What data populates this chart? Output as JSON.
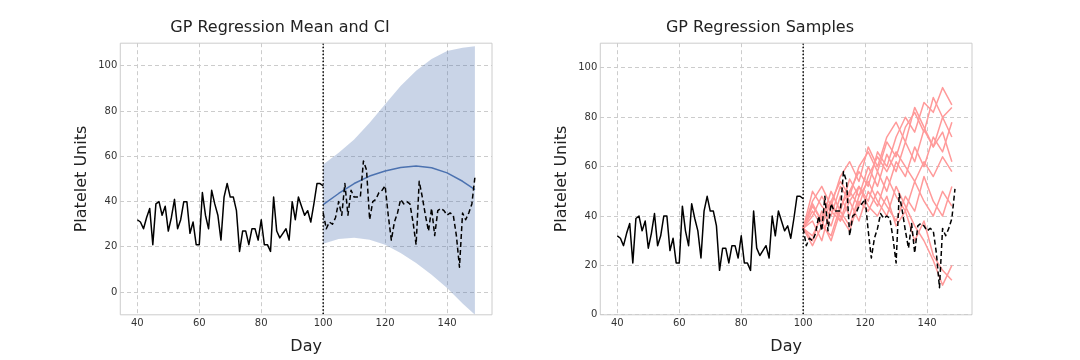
{
  "chart_data": [
    {
      "type": "line",
      "title": "GP Regression Mean and CI",
      "xlabel": "Day",
      "ylabel": "Platelet Units",
      "xlim": [
        34.5,
        154.5
      ],
      "xticks": [
        40,
        60,
        80,
        100,
        120,
        140
      ],
      "ylim": [
        -10,
        110
      ],
      "yticks": [
        0,
        20,
        40,
        60,
        80,
        100
      ],
      "grid": true,
      "legend": false,
      "marker": "none",
      "series": [
        {
          "color": "#000000",
          "line_style": "solid",
          "x": [
            40,
            41,
            42,
            43,
            44,
            45,
            46,
            47,
            48,
            49,
            50,
            51,
            52,
            53,
            54,
            55,
            56,
            57,
            58,
            59,
            60,
            61,
            62,
            63,
            64,
            65,
            66,
            67,
            68,
            69,
            70,
            71,
            72,
            73,
            74,
            75,
            76,
            77,
            78,
            79,
            80,
            81,
            82,
            83,
            84,
            85,
            86,
            87,
            88,
            89,
            90,
            91,
            92,
            93,
            94,
            95,
            96,
            97,
            98,
            99,
            100
          ],
          "values": [
            32,
            31,
            28,
            33,
            37,
            21,
            39,
            40,
            34,
            38,
            27,
            33,
            41,
            28,
            32,
            40,
            40,
            26,
            31,
            21,
            21,
            44,
            34,
            28,
            45,
            39,
            34,
            23,
            42,
            48,
            42,
            42,
            36,
            18,
            27,
            27,
            21,
            28,
            28,
            23,
            32,
            21,
            21,
            18,
            42,
            27,
            24,
            26,
            28,
            23,
            40,
            32,
            42,
            38,
            34,
            36,
            31,
            39,
            48,
            48,
            47
          ]
        },
        {
          "color": "#4c72b0",
          "line_style": "solid",
          "x": [
            100,
            105,
            110,
            115,
            120,
            125,
            130,
            135,
            140,
            145,
            149
          ],
          "values": [
            38.7,
            43.6,
            48,
            51.3,
            53.5,
            55.1,
            55.7,
            55,
            52.7,
            49,
            45.3
          ],
          "lower": [
            21.4,
            23.5,
            24,
            23.2,
            21,
            17.3,
            12.9,
            7.7,
            1.8,
            -5,
            -10
          ],
          "upper": [
            56.4,
            61.6,
            67.5,
            74.9,
            83,
            91.1,
            97.8,
            103,
            106.6,
            108,
            108.6
          ]
        },
        {
          "color": "#000000",
          "line_style": "dashed",
          "x": [
            100,
            101,
            102,
            103,
            104,
            105,
            106,
            107,
            108,
            109,
            110,
            111,
            112,
            113,
            114,
            115,
            116,
            117,
            118,
            119,
            120,
            121,
            122,
            123,
            124,
            125,
            126,
            127,
            128,
            129,
            130,
            131,
            132,
            133,
            134,
            135,
            136,
            137,
            138,
            139,
            140,
            141,
            142,
            143,
            144,
            145,
            146,
            147,
            148,
            149
          ],
          "values": [
            35,
            28,
            31,
            30,
            33,
            40,
            34,
            48,
            34,
            45,
            42,
            42,
            42,
            58,
            54,
            32,
            40,
            41,
            44,
            45,
            47,
            34,
            23,
            31,
            35,
            41,
            39,
            40,
            39,
            31,
            21,
            49,
            42,
            34,
            27,
            37,
            25,
            36,
            37,
            36,
            34,
            35,
            34,
            25,
            11,
            35,
            32,
            35,
            39,
            51
          ]
        }
      ],
      "ref_lines": [
        {
          "axis": "x",
          "value": 100,
          "color": "#000000",
          "line_style": "dotted"
        }
      ]
    },
    {
      "type": "line",
      "title": "GP Regression Samples",
      "xlabel": "Day",
      "ylabel": "Platelet Units",
      "xlim": [
        34.5,
        154.5
      ],
      "xticks": [
        40,
        60,
        80,
        100,
        120,
        140
      ],
      "ylim": [
        0,
        110
      ],
      "yticks": [
        0,
        20,
        40,
        60,
        80,
        100
      ],
      "grid": true,
      "legend": false,
      "marker": "none",
      "series": [
        {
          "color": "#ff9a9a",
          "line_style": "solid",
          "x": [
            100,
            103,
            106,
            109,
            112,
            115,
            118,
            121,
            124,
            127,
            130,
            133,
            136,
            139,
            142,
            145,
            148
          ],
          "values": [
            35,
            45,
            38,
            50,
            42,
            55,
            48,
            60,
            52,
            65,
            58,
            70,
            62,
            75,
            68,
            80,
            72
          ]
        },
        {
          "color": "#ff9a9a",
          "line_style": "solid",
          "x": [
            100,
            103,
            106,
            109,
            112,
            115,
            118,
            121,
            124,
            127,
            130,
            133,
            136,
            139,
            142,
            145,
            148
          ],
          "values": [
            35,
            30,
            42,
            36,
            48,
            40,
            52,
            46,
            58,
            50,
            62,
            56,
            68,
            60,
            72,
            66,
            78
          ]
        },
        {
          "color": "#ff9a9a",
          "line_style": "solid",
          "x": [
            100,
            103,
            106,
            109,
            112,
            115,
            118,
            121,
            124,
            127,
            130,
            133,
            136,
            139,
            142,
            145,
            148
          ],
          "values": [
            35,
            50,
            44,
            40,
            52,
            46,
            38,
            50,
            44,
            56,
            48,
            42,
            54,
            46,
            40,
            50,
            44
          ]
        },
        {
          "color": "#ff9a9a",
          "line_style": "solid",
          "x": [
            100,
            103,
            106,
            109,
            112,
            115,
            118,
            121,
            124,
            127,
            130,
            133,
            136,
            139,
            142,
            145,
            148
          ],
          "values": [
            35,
            28,
            36,
            32,
            44,
            50,
            58,
            52,
            66,
            60,
            72,
            80,
            74,
            86,
            82,
            92,
            85
          ]
        },
        {
          "color": "#ff9a9a",
          "line_style": "solid",
          "x": [
            100,
            103,
            106,
            109,
            112,
            115,
            118,
            121,
            124,
            127,
            130,
            133,
            136,
            139,
            142,
            145,
            148
          ],
          "values": [
            35,
            40,
            48,
            42,
            38,
            46,
            52,
            44,
            40,
            48,
            36,
            42,
            30,
            38,
            24,
            18,
            14
          ]
        },
        {
          "color": "#ff9a9a",
          "line_style": "solid",
          "x": [
            100,
            103,
            106,
            109,
            112,
            115,
            118,
            121,
            124,
            127,
            130,
            133,
            136,
            139,
            142,
            145,
            148
          ],
          "values": [
            35,
            42,
            36,
            46,
            54,
            48,
            60,
            66,
            58,
            70,
            64,
            76,
            82,
            74,
            88,
            80,
            84
          ]
        },
        {
          "color": "#ff9a9a",
          "line_style": "solid",
          "x": [
            100,
            103,
            106,
            109,
            112,
            115,
            118,
            121,
            124,
            127,
            130,
            133,
            136,
            139,
            142,
            145,
            148
          ],
          "values": [
            35,
            38,
            30,
            44,
            40,
            34,
            46,
            42,
            50,
            44,
            38,
            48,
            42,
            56,
            46,
            40,
            52
          ]
        },
        {
          "color": "#ff9a9a",
          "line_style": "solid",
          "x": [
            100,
            103,
            106,
            109,
            112,
            115,
            118,
            121,
            124,
            127,
            130,
            133,
            136,
            139,
            142,
            145,
            148
          ],
          "values": [
            35,
            46,
            52,
            44,
            56,
            62,
            54,
            68,
            60,
            72,
            78,
            70,
            84,
            76,
            68,
            74,
            62
          ]
        },
        {
          "color": "#ff9a9a",
          "line_style": "solid",
          "x": [
            100,
            103,
            106,
            109,
            112,
            115,
            118,
            121,
            124,
            127,
            130,
            133,
            136,
            139,
            142,
            145,
            148
          ],
          "values": [
            35,
            32,
            40,
            46,
            38,
            50,
            44,
            56,
            64,
            58,
            66,
            60,
            54,
            62,
            56,
            64,
            58
          ]
        },
        {
          "color": "#ff9a9a",
          "line_style": "solid",
          "x": [
            100,
            103,
            106,
            109,
            112,
            115,
            118,
            121,
            124,
            127,
            130,
            133,
            136,
            139,
            142,
            145,
            148
          ],
          "values": [
            35,
            44,
            38,
            30,
            42,
            36,
            48,
            54,
            46,
            40,
            52,
            44,
            36,
            30,
            22,
            12,
            20
          ]
        },
        {
          "color": "#000000",
          "line_style": "solid",
          "x": [
            40,
            41,
            42,
            43,
            44,
            45,
            46,
            47,
            48,
            49,
            50,
            51,
            52,
            53,
            54,
            55,
            56,
            57,
            58,
            59,
            60,
            61,
            62,
            63,
            64,
            65,
            66,
            67,
            68,
            69,
            70,
            71,
            72,
            73,
            74,
            75,
            76,
            77,
            78,
            79,
            80,
            81,
            82,
            83,
            84,
            85,
            86,
            87,
            88,
            89,
            90,
            91,
            92,
            93,
            94,
            95,
            96,
            97,
            98,
            99,
            100
          ],
          "values": [
            32,
            31,
            28,
            33,
            37,
            21,
            39,
            40,
            34,
            38,
            27,
            33,
            41,
            28,
            32,
            40,
            40,
            26,
            31,
            21,
            21,
            44,
            34,
            28,
            45,
            39,
            34,
            23,
            42,
            48,
            42,
            42,
            36,
            18,
            27,
            27,
            21,
            28,
            28,
            23,
            32,
            21,
            21,
            18,
            42,
            27,
            24,
            26,
            28,
            23,
            40,
            32,
            42,
            38,
            34,
            36,
            31,
            39,
            48,
            48,
            47
          ]
        },
        {
          "color": "#000000",
          "line_style": "dashed",
          "x": [
            100,
            101,
            102,
            103,
            104,
            105,
            106,
            107,
            108,
            109,
            110,
            111,
            112,
            113,
            114,
            115,
            116,
            117,
            118,
            119,
            120,
            121,
            122,
            123,
            124,
            125,
            126,
            127,
            128,
            129,
            130,
            131,
            132,
            133,
            134,
            135,
            136,
            137,
            138,
            139,
            140,
            141,
            142,
            143,
            144,
            145,
            146,
            147,
            148,
            149
          ],
          "values": [
            35,
            28,
            31,
            30,
            33,
            40,
            34,
            48,
            34,
            45,
            42,
            42,
            42,
            58,
            54,
            32,
            40,
            41,
            44,
            45,
            47,
            34,
            23,
            31,
            35,
            41,
            39,
            40,
            39,
            31,
            21,
            49,
            42,
            34,
            27,
            37,
            25,
            36,
            37,
            36,
            34,
            35,
            34,
            25,
            11,
            35,
            32,
            35,
            39,
            51
          ]
        }
      ],
      "ref_lines": [
        {
          "axis": "x",
          "value": 100,
          "color": "#000000",
          "line_style": "dotted"
        }
      ]
    }
  ]
}
